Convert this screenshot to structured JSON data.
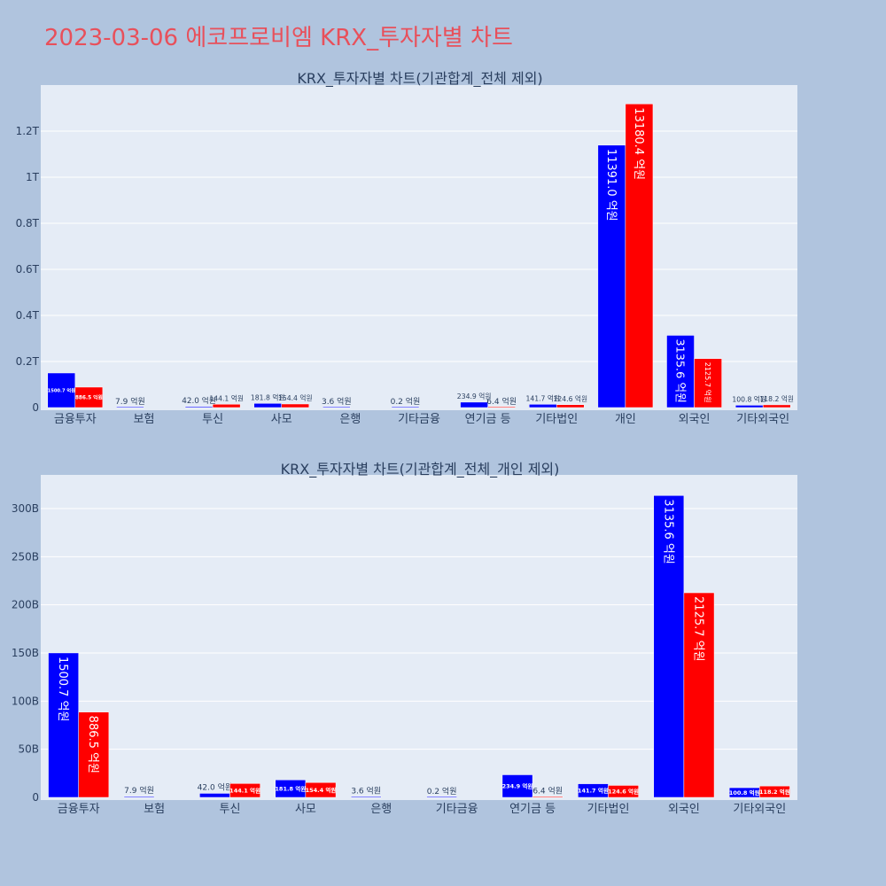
{
  "title": "2023-03-06 에코프로비엠 KRX_투자자별 차트",
  "colors": {
    "background": "#b0c4de",
    "plot_bg": "#e5ecf6",
    "series_a": "#0000ff",
    "series_b": "#ff0000",
    "title": "#e8505b",
    "text": "#2a3f5f"
  },
  "chart_data": [
    {
      "type": "bar",
      "title": "KRX_투자자별 차트(기관합계_전체 제외)",
      "categories": [
        "금융투자",
        "보험",
        "투신",
        "사모",
        "은행",
        "기타금융",
        "연기금 등",
        "기타법인",
        "개인",
        "외국인",
        "기타외국인"
      ],
      "series": [
        {
          "values": [
            150070000000,
            790000000,
            4200000000,
            18180000000,
            360000000,
            20000000,
            23490000000,
            14170000000,
            1139100000000,
            313560000000,
            10080000000
          ]
        },
        {
          "values": [
            88650000000,
            null,
            14410000000,
            15440000000,
            null,
            null,
            640000000,
            12460000000,
            1318040000000,
            212570000000,
            11820000000
          ]
        }
      ],
      "data_labels": [
        [
          "1500.7 억원",
          "7.9 억원",
          "42.0 억원",
          "181.8 억원",
          "3.6 억원",
          "0.2 억원",
          "234.9 억원",
          "141.7 억원",
          "11391.0 억원",
          "3135.6 억원",
          "100.8 억원"
        ],
        [
          "886.5 억원",
          "",
          "144.1 억원",
          "154.4 억원",
          "",
          "",
          "6.4 억원",
          "124.6 억원",
          "13180.4 억원",
          "2125.7 억원",
          "118.2 억원"
        ]
      ],
      "yticks": [
        "0",
        "0.2T",
        "0.4T",
        "0.6T",
        "0.8T",
        "1T",
        "1.2T"
      ],
      "ylim": [
        0,
        1400000000000
      ],
      "grid": true
    },
    {
      "type": "bar",
      "title": "KRX_투자자별 차트(기관합계_전체_개인 제외)",
      "categories": [
        "금융투자",
        "보험",
        "투신",
        "사모",
        "은행",
        "기타금융",
        "연기금 등",
        "기타법인",
        "외국인",
        "기타외국인"
      ],
      "series": [
        {
          "values": [
            150070000000,
            790000000,
            4200000000,
            18180000000,
            360000000,
            20000000,
            23490000000,
            14170000000,
            313560000000,
            10080000000
          ]
        },
        {
          "values": [
            88650000000,
            null,
            14410000000,
            15440000000,
            null,
            null,
            640000000,
            12460000000,
            212570000000,
            11820000000
          ]
        }
      ],
      "data_labels": [
        [
          "1500.7 억원",
          "7.9 억원",
          "42.0 억원",
          "181.8 억원",
          "3.6 억원",
          "0.2 억원",
          "234.9 억원",
          "141.7 억원",
          "3135.6 억원",
          "100.8 억원"
        ],
        [
          "886.5 억원",
          "",
          "144.1 억원",
          "154.4 억원",
          "",
          "",
          "6.4 억원",
          "124.6 억원",
          "2125.7 억원",
          "118.2 억원"
        ]
      ],
      "yticks": [
        "0",
        "50B",
        "100B",
        "150B",
        "200B",
        "250B",
        "300B"
      ],
      "ylim": [
        0,
        335000000000
      ],
      "grid": true
    }
  ]
}
